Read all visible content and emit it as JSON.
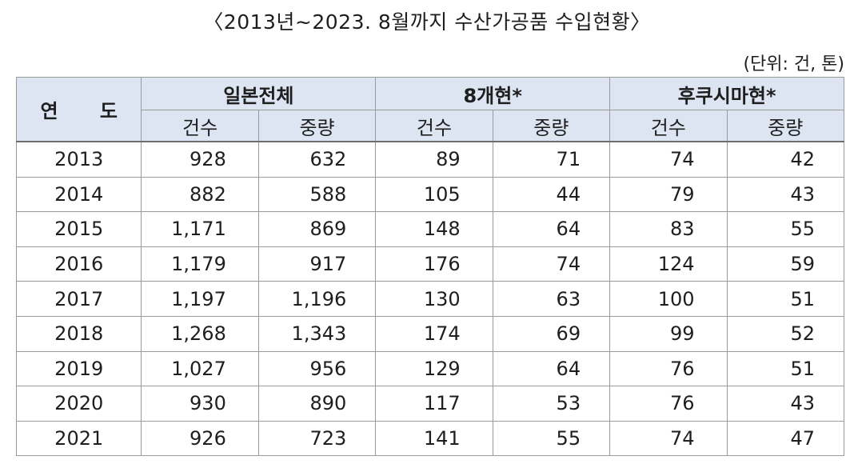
{
  "title": "〈2013년~2023. 8월까지 수산가공품 수입현황〉",
  "unit_note": "(단위: 건, 톤)",
  "table": {
    "year_header": "연 도",
    "groups": [
      "일본전체",
      "8개현*",
      "후쿠시마현*"
    ],
    "sub_headers": [
      "건수",
      "중량",
      "건수",
      "중량",
      "건수",
      "중량"
    ],
    "rows": [
      {
        "year": "2013",
        "values": [
          "928",
          "632",
          "89",
          "71",
          "74",
          "42"
        ]
      },
      {
        "year": "2014",
        "values": [
          "882",
          "588",
          "105",
          "44",
          "79",
          "43"
        ]
      },
      {
        "year": "2015",
        "values": [
          "1,171",
          "869",
          "148",
          "64",
          "83",
          "55"
        ]
      },
      {
        "year": "2016",
        "values": [
          "1,179",
          "917",
          "176",
          "74",
          "124",
          "59"
        ]
      },
      {
        "year": "2017",
        "values": [
          "1,197",
          "1,196",
          "130",
          "63",
          "100",
          "51"
        ]
      },
      {
        "year": "2018",
        "values": [
          "1,268",
          "1,343",
          "174",
          "69",
          "99",
          "52"
        ]
      },
      {
        "year": "2019",
        "values": [
          "1,027",
          "956",
          "129",
          "64",
          "76",
          "51"
        ]
      },
      {
        "year": "2020",
        "values": [
          "930",
          "890",
          "117",
          "53",
          "76",
          "43"
        ]
      },
      {
        "year": "2021",
        "values": [
          "926",
          "723",
          "141",
          "55",
          "74",
          "47"
        ]
      }
    ]
  }
}
